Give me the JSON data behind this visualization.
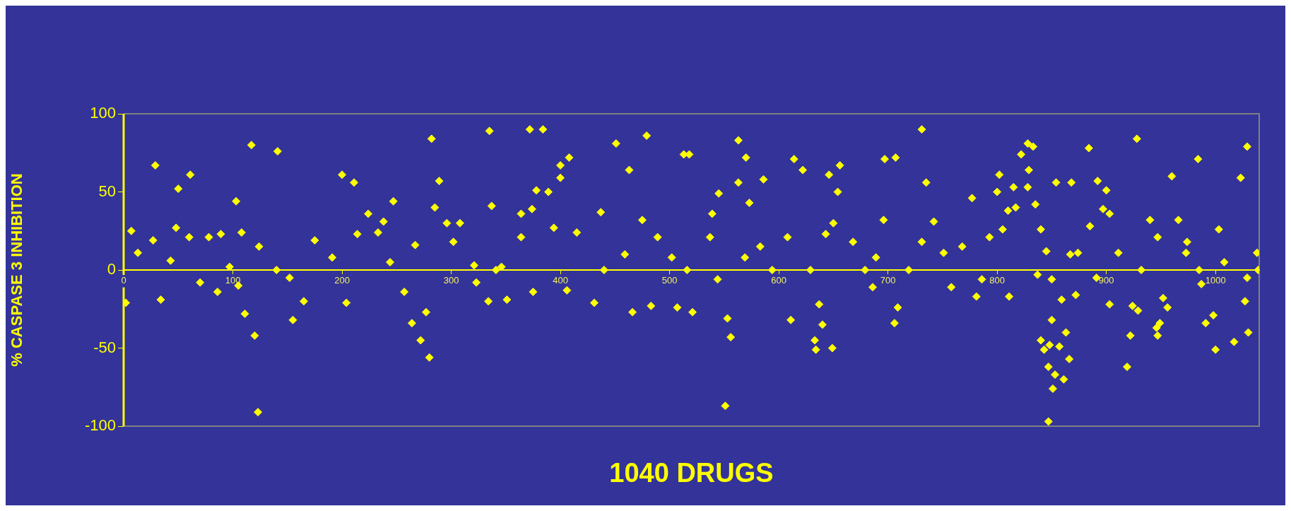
{
  "chart_data": {
    "type": "scatter",
    "xlabel": "1040 DRUGS",
    "ylabel": "% CASPASE 3 INHIBITION",
    "xlim": [
      0,
      1040
    ],
    "xticks": [
      0,
      100,
      200,
      300,
      400,
      500,
      600,
      700,
      800,
      900,
      1000
    ],
    "ylim": [
      -100,
      100
    ],
    "yticks": [
      -100,
      -50,
      0,
      50,
      100
    ],
    "marker": "diamond",
    "legend": false,
    "x": [
      2,
      7,
      13,
      27,
      29,
      34,
      43,
      48,
      50,
      60,
      61,
      70,
      78,
      86,
      89,
      97,
      103,
      105,
      108,
      111,
      117,
      120,
      123,
      124,
      140,
      141,
      152,
      155,
      165,
      175,
      191,
      200,
      204,
      211,
      214,
      224,
      233,
      238,
      244,
      247,
      257,
      264,
      267,
      272,
      277,
      280,
      282,
      285,
      289,
      296,
      302,
      308,
      321,
      323,
      334,
      335,
      337,
      346,
      341,
      351,
      364,
      364,
      372,
      374,
      375,
      378,
      384,
      389,
      394,
      400,
      400,
      406,
      408,
      415,
      431,
      437,
      440,
      451,
      459,
      463,
      466,
      475,
      479,
      483,
      489,
      502,
      507,
      513,
      516,
      518,
      521,
      537,
      539,
      544,
      545,
      551,
      553,
      556,
      563,
      563,
      569,
      570,
      573,
      583,
      586,
      594,
      608,
      611,
      614,
      622,
      629,
      633,
      634,
      637,
      640,
      643,
      646,
      649,
      650,
      654,
      656,
      668,
      679,
      686,
      689,
      696,
      697,
      706,
      707,
      709,
      719,
      731,
      731,
      735,
      742,
      751,
      758,
      768,
      777,
      781,
      786,
      793,
      800,
      802,
      805,
      810,
      811,
      815,
      817,
      822,
      828,
      828,
      829,
      833,
      835,
      837,
      840,
      840,
      843,
      845,
      847,
      847,
      848,
      850,
      850,
      851,
      853,
      854,
      857,
      859,
      861,
      863,
      866,
      867,
      868,
      872,
      874,
      884,
      885,
      891,
      892,
      897,
      900,
      903,
      903,
      911,
      919,
      922,
      924,
      928,
      929,
      932,
      940,
      946,
      947,
      947,
      949,
      952,
      956,
      960,
      966,
      973,
      974,
      984,
      985,
      987,
      991,
      998,
      1000,
      1003,
      1008,
      1017,
      1023,
      1027,
      1029,
      1029,
      1030,
      1038,
      1039
    ],
    "values": [
      -21,
      25,
      11,
      19,
      67,
      -19,
      6,
      27,
      52,
      21,
      61,
      -8,
      21,
      -14,
      23,
      2,
      44,
      -10,
      24,
      -28,
      80,
      -42,
      -91,
      15,
      0,
      76,
      -5,
      -32,
      -20,
      19,
      8,
      61,
      -21,
      56,
      23,
      36,
      24,
      31,
      5,
      44,
      -14,
      -34,
      16,
      -45,
      -27,
      -56,
      84,
      40,
      57,
      30,
      18,
      30,
      3,
      -8,
      -20,
      89,
      41,
      2,
      0,
      -19,
      36,
      21,
      90,
      39,
      -14,
      51,
      90,
      50,
      27,
      67,
      59,
      -13,
      72,
      24,
      -21,
      37,
      0,
      81,
      10,
      64,
      -27,
      32,
      86,
      -23,
      21,
      8,
      -24,
      74,
      0,
      74,
      -27,
      21,
      36,
      -6,
      49,
      -87,
      -31,
      -43,
      83,
      56,
      8,
      72,
      43,
      15,
      58,
      0,
      21,
      -32,
      71,
      64,
      0,
      -45,
      -51,
      -22,
      -35,
      23,
      61,
      -50,
      30,
      50,
      67,
      18,
      0,
      -11,
      8,
      32,
      71,
      -34,
      72,
      -24,
      0,
      18,
      90,
      56,
      31,
      11,
      -11,
      15,
      46,
      -17,
      -6,
      21,
      50,
      61,
      26,
      38,
      -17,
      53,
      40,
      74,
      81,
      53,
      64,
      79,
      42,
      -3,
      26,
      -45,
      -51,
      12,
      -62,
      -97,
      -48,
      -6,
      -32,
      -76,
      -67,
      56,
      -49,
      -19,
      -70,
      -40,
      -57,
      10,
      56,
      -16,
      11,
      78,
      28,
      -5,
      57,
      39,
      51,
      36,
      -22,
      11,
      -62,
      -42,
      -23,
      84,
      -26,
      0,
      32,
      -37,
      21,
      -42,
      -34,
      -18,
      -24,
      60,
      32,
      11,
      18,
      71,
      0,
      -9,
      -34,
      -29,
      -51,
      26,
      5,
      -46,
      59,
      -20,
      79,
      -5,
      -40,
      11,
      0
    ],
    "color": "#ffff00"
  }
}
